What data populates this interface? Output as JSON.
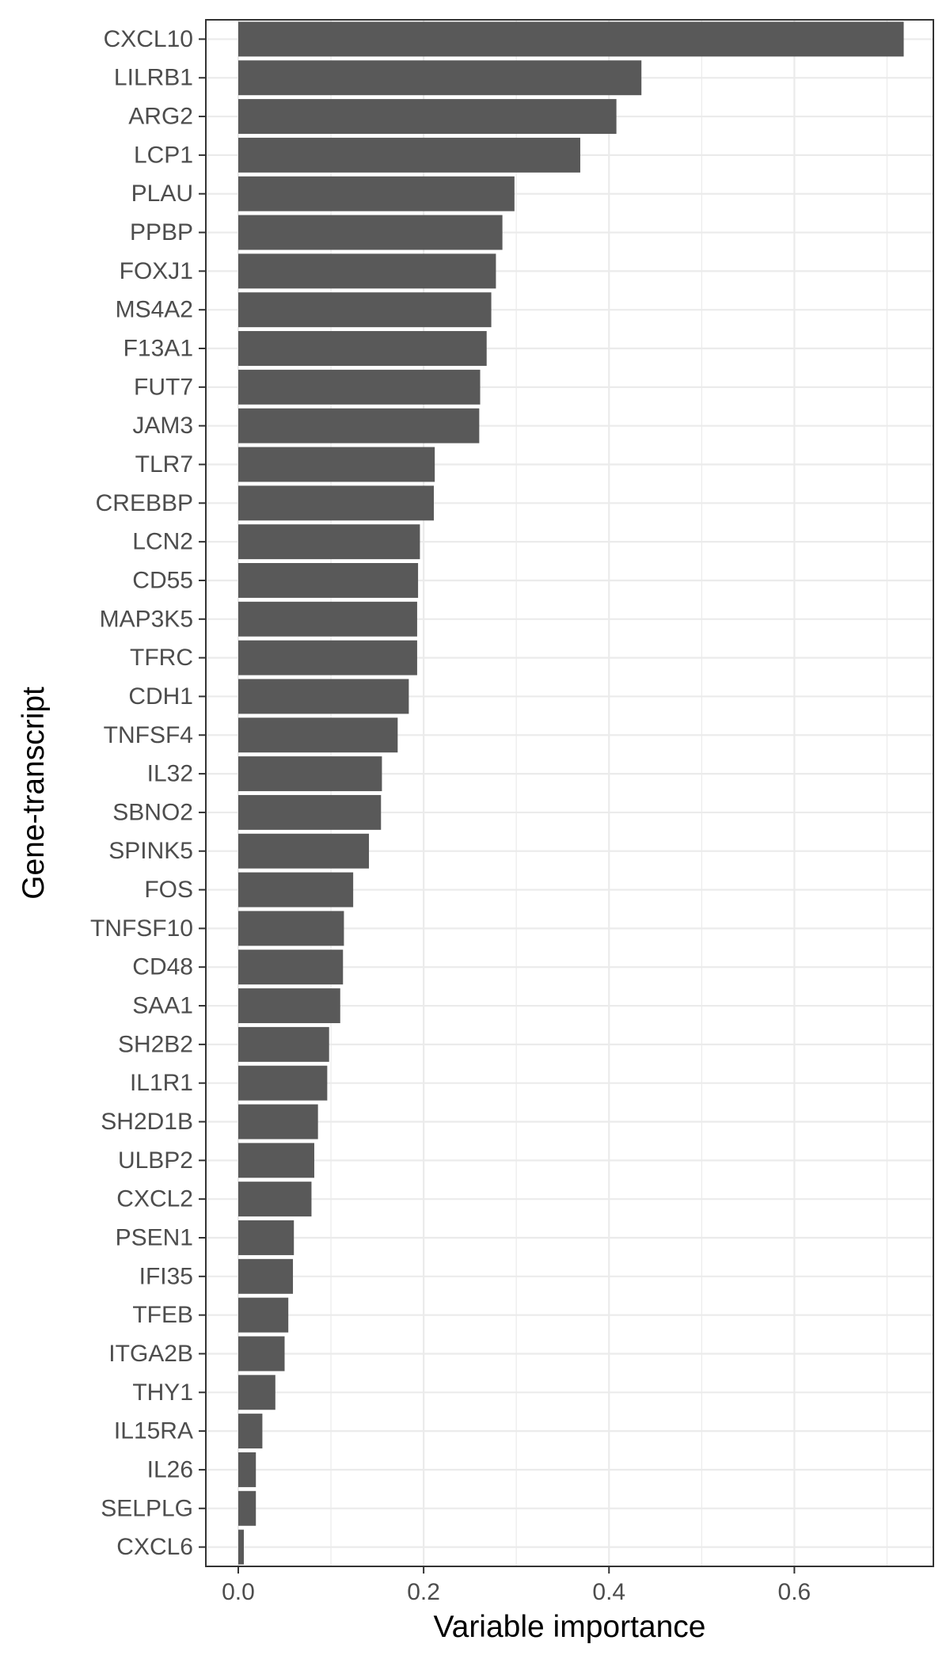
{
  "chart_data": {
    "type": "bar",
    "orientation": "horizontal",
    "xlabel": "Variable importance",
    "ylabel": "Gene-transcript",
    "xlim": [
      -0.035,
      0.75
    ],
    "x_ticks": [
      0.0,
      0.2,
      0.4,
      0.6
    ],
    "x_tick_labels": [
      "0.0",
      "0.2",
      "0.4",
      "0.6"
    ],
    "grid": true,
    "legend": "none",
    "bar_color": "#595959",
    "gridline_color": "#ebebeb",
    "categories": [
      "CXCL10",
      "LILRB1",
      "ARG2",
      "LCP1",
      "PLAU",
      "PPBP",
      "FOXJ1",
      "MS4A2",
      "F13A1",
      "FUT7",
      "JAM3",
      "TLR7",
      "CREBBP",
      "LCN2",
      "CD55",
      "MAP3K5",
      "TFRC",
      "CDH1",
      "TNFSF4",
      "IL32",
      "SBNO2",
      "SPINK5",
      "FOS",
      "TNFSF10",
      "CD48",
      "SAA1",
      "SH2B2",
      "IL1R1",
      "SH2D1B",
      "ULBP2",
      "CXCL2",
      "PSEN1",
      "IFI35",
      "TFEB",
      "ITGA2B",
      "THY1",
      "IL15RA",
      "IL26",
      "SELPLG",
      "CXCL6"
    ],
    "values": [
      0.718,
      0.435,
      0.408,
      0.369,
      0.298,
      0.285,
      0.278,
      0.273,
      0.268,
      0.261,
      0.26,
      0.212,
      0.211,
      0.196,
      0.194,
      0.193,
      0.193,
      0.184,
      0.172,
      0.155,
      0.154,
      0.141,
      0.124,
      0.114,
      0.113,
      0.11,
      0.098,
      0.096,
      0.086,
      0.082,
      0.079,
      0.06,
      0.059,
      0.054,
      0.05,
      0.04,
      0.026,
      0.019,
      0.019,
      0.006
    ]
  }
}
